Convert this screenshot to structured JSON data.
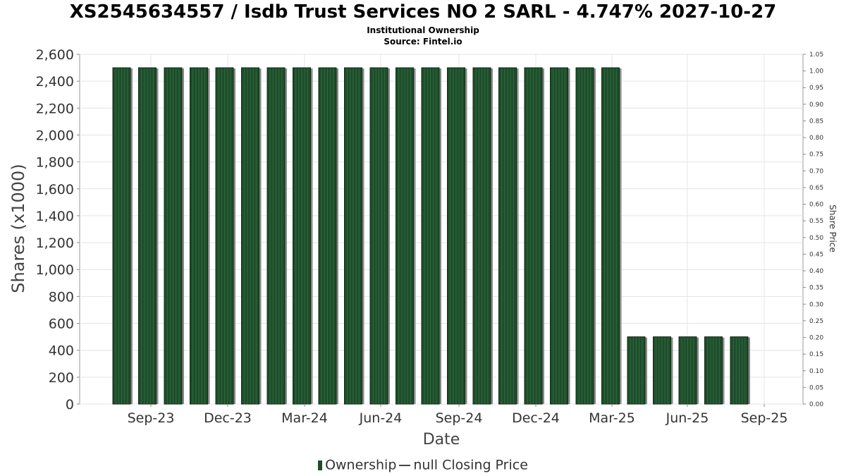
{
  "chart_data": {
    "type": "bar",
    "title": "XS2545634557 / Isdb Trust Services NO 2 SARL - 4.747% 2027-10-27",
    "subtitles": [
      "Institutional Ownership",
      "Source: Fintel.io"
    ],
    "xlabel": "Date",
    "ylabel": "Shares (x1000)",
    "y2label": "Share Price",
    "ylim": [
      0,
      2600
    ],
    "y2lim": [
      0,
      1.05
    ],
    "yticks": [
      "0",
      "200",
      "400",
      "600",
      "800",
      "1,000",
      "1,200",
      "1,400",
      "1,600",
      "1,800",
      "2,000",
      "2,200",
      "2,400",
      "2,600"
    ],
    "y2ticks": [
      "0.00",
      "0.05",
      "0.10",
      "0.15",
      "0.20",
      "0.25",
      "0.30",
      "0.35",
      "0.40",
      "0.45",
      "0.50",
      "0.55",
      "0.60",
      "0.65",
      "0.70",
      "0.75",
      "0.80",
      "0.85",
      "0.90",
      "0.95",
      "1.00",
      "1.05"
    ],
    "xticks": [
      "Sep-23",
      "Dec-23",
      "Mar-24",
      "Jun-24",
      "Sep-24",
      "Dec-24",
      "Mar-25",
      "Jun-25",
      "Sep-25"
    ],
    "grid": true,
    "legend_position": "bottom",
    "series": [
      {
        "name": "Ownership",
        "color": "#1e4d2b",
        "values": [
          2500,
          2500,
          2500,
          2500,
          2500,
          2500,
          2500,
          2500,
          2500,
          2500,
          2500,
          2500,
          2500,
          2500,
          2500,
          2500,
          2500,
          2500,
          2500,
          2500,
          500,
          500,
          500,
          500,
          500
        ]
      }
    ],
    "legend": [
      "Ownership",
      "null Closing Price"
    ]
  }
}
